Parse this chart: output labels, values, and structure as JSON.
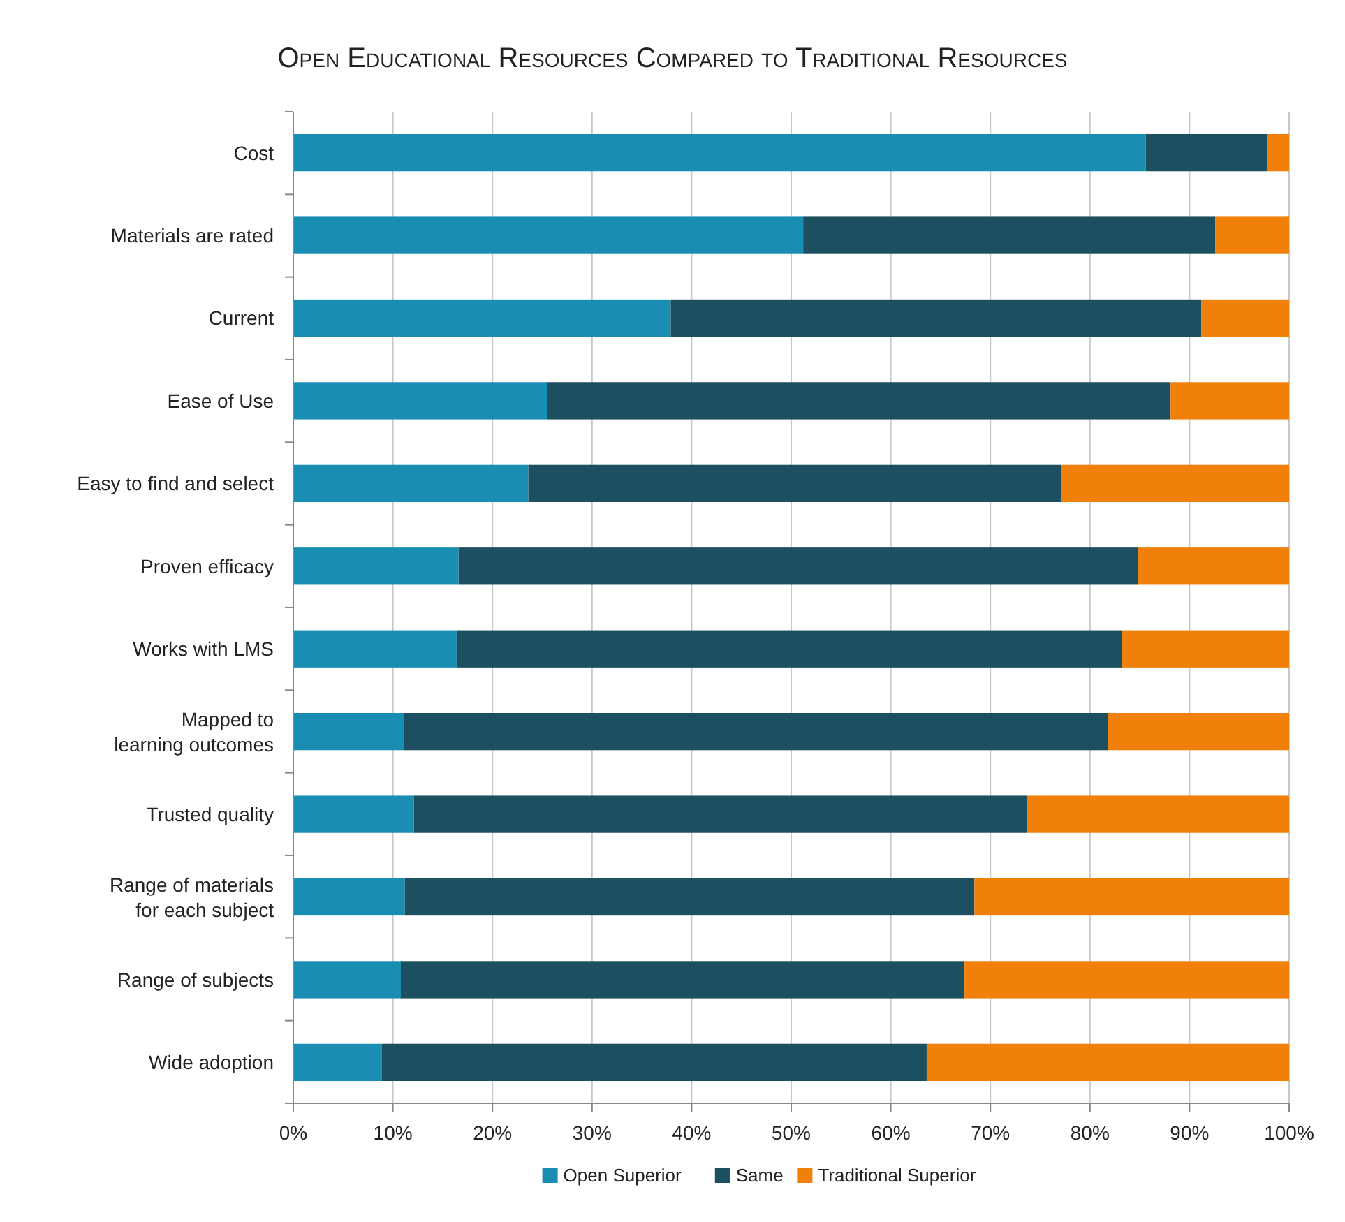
{
  "chart_data": {
    "type": "bar",
    "orientation": "horizontal",
    "stacked": true,
    "title": "Open Educational Resources Compared to Traditional Resources",
    "categories": [
      "Cost",
      "Materials are rated",
      "Current",
      "Ease of Use",
      "Easy to find and select",
      "Proven efficacy",
      "Works with LMS",
      "Mapped to\nlearning outcomes",
      "Trusted quality",
      "Range of materials\nfor each subject",
      "Range of subjects",
      "Wide adoption"
    ],
    "series": [
      {
        "name": "Open Superior",
        "color": "#1a8db3",
        "values": [
          85.6,
          51.2,
          37.9,
          25.5,
          23.6,
          16.6,
          16.4,
          11.1,
          12.1,
          11.2,
          10.8,
          8.9
        ]
      },
      {
        "name": "Same",
        "color": "#1c4f5f",
        "values": [
          12.2,
          41.4,
          53.3,
          62.6,
          53.5,
          68.2,
          66.8,
          70.7,
          61.6,
          57.2,
          56.6,
          54.7
        ]
      },
      {
        "name": "Traditional Superior",
        "color": "#f0800a",
        "values": [
          2.2,
          7.4,
          8.8,
          11.9,
          22.9,
          15.2,
          16.8,
          18.2,
          26.3,
          31.6,
          32.6,
          36.4
        ]
      }
    ],
    "xlim": [
      0,
      100
    ],
    "xticks": [
      {
        "value": 0,
        "label": "0%"
      },
      {
        "value": 10,
        "label": "10%"
      },
      {
        "value": 20,
        "label": "20%"
      },
      {
        "value": 30,
        "label": "30%"
      },
      {
        "value": 40,
        "label": "40%"
      },
      {
        "value": 50,
        "label": "50%"
      },
      {
        "value": 60,
        "label": "60%"
      },
      {
        "value": 70,
        "label": "70%"
      },
      {
        "value": 80,
        "label": "80%"
      },
      {
        "value": 90,
        "label": "90%"
      },
      {
        "value": 100,
        "label": "100%"
      }
    ],
    "grid": "x",
    "legend": "bottom"
  }
}
